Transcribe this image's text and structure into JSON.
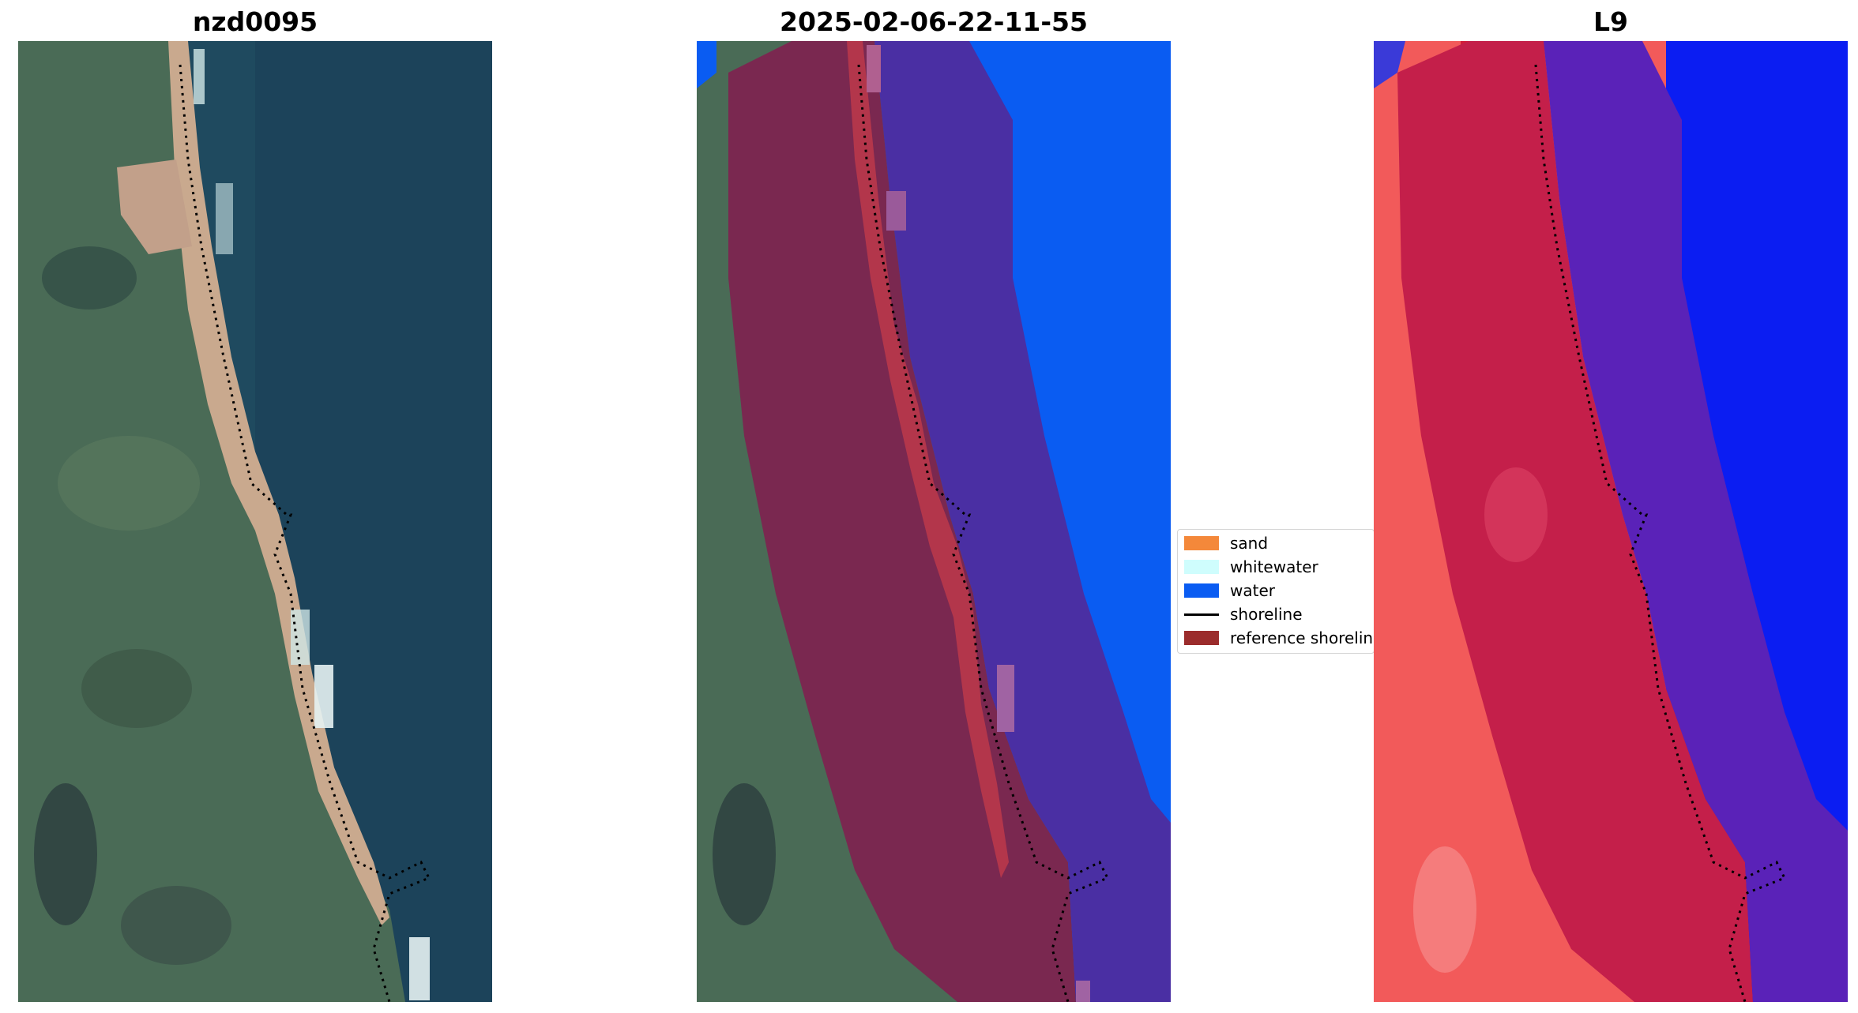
{
  "panels": [
    {
      "title": "nzd0095"
    },
    {
      "title": "2025-02-06-22-11-55"
    },
    {
      "title": "L9"
    }
  ],
  "legend": {
    "items": [
      {
        "label": "sand",
        "color": "#f4883a",
        "kind": "patch"
      },
      {
        "label": "whitewater",
        "color": "#cffdfd",
        "kind": "patch"
      },
      {
        "label": "water",
        "color": "#0a5cf2",
        "kind": "patch"
      },
      {
        "label": "shoreline",
        "color": "#000000",
        "kind": "line"
      },
      {
        "label": "reference shoreline",
        "color": "#9b2c2c",
        "kind": "patch"
      }
    ]
  },
  "colors": {
    "ocean": "#1d4a5e",
    "land": "#4a6b56",
    "beach": "#c9a98e",
    "buffer_land": "#7a2850",
    "buffer_water": "#4a2fa3",
    "water_class": "#0a5cf2",
    "index_land": "#f25a5a",
    "index_buffer_land": "#c41f4a",
    "index_buffer_water": "#5a22b8",
    "index_water": "#0b1df2"
  }
}
